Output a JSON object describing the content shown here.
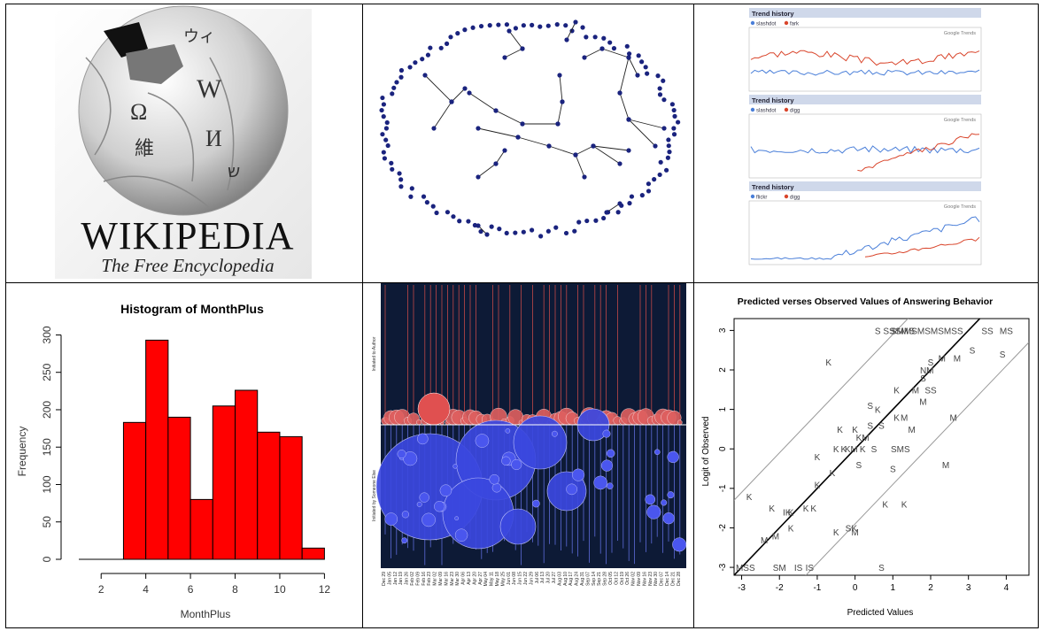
{
  "wikipedia": {
    "title": "WIKIPEDIA",
    "subtitle": "The Free Encyclopedia",
    "glyphs": [
      "Ω",
      "W",
      "И",
      "維",
      "ウィ",
      "ש"
    ]
  },
  "trends": {
    "panels": [
      {
        "header": "Trend history",
        "legend": [
          "slashdot",
          "fark"
        ],
        "label": "Google Trends"
      },
      {
        "header": "Trend history",
        "legend": [
          "slashdot",
          "digg"
        ],
        "label": "Google Trends"
      },
      {
        "header": "Trend history",
        "legend": [
          "flickr",
          "digg"
        ],
        "label": "Google Trends"
      }
    ],
    "colors": {
      "blue": "#4a7fd9",
      "red": "#d9452b"
    }
  },
  "chart_data": [
    {
      "type": "bar",
      "title": "Histogram of MonthPlus",
      "xlabel": "MonthPlus",
      "ylabel": "Frequency",
      "bin_edges": [
        3,
        4,
        5,
        6,
        7,
        8,
        9,
        10,
        11,
        12
      ],
      "values": [
        183,
        293,
        190,
        80,
        205,
        226,
        170,
        164,
        15
      ],
      "xticks": [
        "2",
        "4",
        "6",
        "8",
        "10",
        "12"
      ],
      "yticks": [
        "0",
        "50",
        "100",
        "150",
        "200",
        "250",
        "300"
      ],
      "xlim": [
        1,
        12.5
      ],
      "ylim": [
        0,
        310
      ],
      "color": "#ff0000"
    },
    {
      "type": "scatter",
      "title": "Predicted verses Observed Values of Answering Behavior",
      "xlabel": "Predicted Values",
      "ylabel": "Logit of Observed",
      "xticks": [
        "-3",
        "-2",
        "-1",
        "0",
        "1",
        "2",
        "3",
        "4"
      ],
      "yticks": [
        "-3",
        "-2",
        "-1",
        "0",
        "1",
        "2",
        "3"
      ],
      "xlim": [
        -3.2,
        4.6
      ],
      "ylim": [
        -3.2,
        3.3
      ],
      "points": [
        {
          "x": -2.9,
          "y": -3.0,
          "label": "MSS"
        },
        {
          "x": -2.0,
          "y": -3.0,
          "label": "SM"
        },
        {
          "x": -1.5,
          "y": -3.0,
          "label": "IS"
        },
        {
          "x": -1.2,
          "y": -3.0,
          "label": "IS"
        },
        {
          "x": 0.7,
          "y": -3.0,
          "label": "S"
        },
        {
          "x": -2.8,
          "y": -1.2,
          "label": "K"
        },
        {
          "x": -2.2,
          "y": -1.5,
          "label": "K"
        },
        {
          "x": -1.8,
          "y": -1.6,
          "label": "IK"
        },
        {
          "x": -1.7,
          "y": -1.6,
          "label": "K"
        },
        {
          "x": -1.3,
          "y": -1.5,
          "label": "K"
        },
        {
          "x": -1.1,
          "y": -1.5,
          "label": "K"
        },
        {
          "x": -2.4,
          "y": -2.3,
          "label": "M"
        },
        {
          "x": -2.1,
          "y": -2.2,
          "label": "M"
        },
        {
          "x": -1.7,
          "y": -2.0,
          "label": "K"
        },
        {
          "x": -1.0,
          "y": -0.9,
          "label": "K"
        },
        {
          "x": -0.6,
          "y": -0.6,
          "label": "K"
        },
        {
          "x": -1.0,
          "y": -0.2,
          "label": "K"
        },
        {
          "x": -0.5,
          "y": 0.0,
          "label": "K"
        },
        {
          "x": -0.3,
          "y": 0.0,
          "label": "K"
        },
        {
          "x": -0.1,
          "y": 0.0,
          "label": "KM"
        },
        {
          "x": 0.2,
          "y": 0.0,
          "label": "K"
        },
        {
          "x": 0.5,
          "y": 0.0,
          "label": "S"
        },
        {
          "x": 1.2,
          "y": 0.0,
          "label": "SMS"
        },
        {
          "x": 0.1,
          "y": -0.4,
          "label": "S"
        },
        {
          "x": 1.0,
          "y": -0.5,
          "label": "S"
        },
        {
          "x": -0.4,
          "y": 0.5,
          "label": "K"
        },
        {
          "x": 0.0,
          "y": 0.5,
          "label": "K"
        },
        {
          "x": 0.2,
          "y": 0.3,
          "label": "KM"
        },
        {
          "x": 0.4,
          "y": 0.6,
          "label": "S"
        },
        {
          "x": 0.7,
          "y": 0.6,
          "label": "S"
        },
        {
          "x": 1.1,
          "y": 0.8,
          "label": "K"
        },
        {
          "x": 1.5,
          "y": 0.5,
          "label": "M"
        },
        {
          "x": 0.6,
          "y": 1.0,
          "label": "K"
        },
        {
          "x": 1.3,
          "y": 0.8,
          "label": "M"
        },
        {
          "x": 1.8,
          "y": 1.2,
          "label": "M"
        },
        {
          "x": 2.6,
          "y": 0.8,
          "label": "M"
        },
        {
          "x": 1.1,
          "y": 1.5,
          "label": "K"
        },
        {
          "x": 1.6,
          "y": 1.5,
          "label": "M"
        },
        {
          "x": 2.0,
          "y": 1.5,
          "label": "SS"
        },
        {
          "x": 1.8,
          "y": 1.8,
          "label": "S"
        },
        {
          "x": 1.9,
          "y": 2.0,
          "label": "NM"
        },
        {
          "x": 2.0,
          "y": 2.2,
          "label": "S"
        },
        {
          "x": 2.3,
          "y": 2.3,
          "label": "M"
        },
        {
          "x": 2.7,
          "y": 2.3,
          "label": "M"
        },
        {
          "x": 3.1,
          "y": 2.5,
          "label": "S"
        },
        {
          "x": 3.9,
          "y": 2.4,
          "label": "S"
        },
        {
          "x": -0.5,
          "y": -2.1,
          "label": "K"
        },
        {
          "x": -0.1,
          "y": -2.0,
          "label": "SK"
        },
        {
          "x": 0.0,
          "y": -2.1,
          "label": "M"
        },
        {
          "x": 0.4,
          "y": 1.1,
          "label": "S"
        },
        {
          "x": 0.8,
          "y": -1.4,
          "label": "K"
        },
        {
          "x": 1.3,
          "y": -1.4,
          "label": "K"
        },
        {
          "x": 2.4,
          "y": -0.4,
          "label": "M"
        },
        {
          "x": -0.7,
          "y": 2.2,
          "label": "K"
        },
        {
          "x": 0.6,
          "y": 3.0,
          "label": "S"
        },
        {
          "x": 0.9,
          "y": 3.0,
          "label": "SS"
        },
        {
          "x": 1.2,
          "y": 3.0,
          "label": "ISM"
        },
        {
          "x": 1.5,
          "y": 3.0,
          "label": "S"
        },
        {
          "x": 1.9,
          "y": 3.0,
          "label": "SMMSMSMSMSS"
        },
        {
          "x": 3.5,
          "y": 3.0,
          "label": "SS"
        },
        {
          "x": 4.0,
          "y": 3.0,
          "label": "MS"
        }
      ],
      "lines": [
        {
          "name": "fit",
          "intercept": 0.0,
          "slope": 1.0
        },
        {
          "name": "upper",
          "intercept": 1.9,
          "slope": 1.0
        },
        {
          "name": "lower",
          "intercept": -1.9,
          "slope": 1.0
        }
      ]
    }
  ],
  "bubbles": {
    "top_label": "Initiated to Author",
    "bottom_label": "Initiated by Someone Else",
    "dates": [
      "Dec 29",
      "Jan 05",
      "Jan 12",
      "Jan 19",
      "Jan 26",
      "Feb 02",
      "Feb 09",
      "Feb 16",
      "Feb 23",
      "Mar 02",
      "Mar 09",
      "Mar 16",
      "Mar 23",
      "Mar 30",
      "Apr 06",
      "Apr 13",
      "Apr 20",
      "Apr 27",
      "May 04",
      "May 11",
      "May 18",
      "May 25",
      "Jun 01",
      "Jun 08",
      "Jun 15",
      "Jun 22",
      "Jun 29",
      "Jul 06",
      "Jul 13",
      "Jul 20",
      "Jul 27",
      "Aug 03",
      "Aug 10",
      "Aug 17",
      "Aug 24",
      "Aug 31",
      "Sep 07",
      "Sep 14",
      "Sep 21",
      "Sep 28",
      "Oct 05",
      "Oct 12",
      "Oct 19",
      "Oct 26",
      "Nov 02",
      "Nov 09",
      "Nov 16",
      "Nov 23",
      "Nov 30",
      "Dec 07",
      "Dec 14",
      "Dec 21",
      "Dec 28"
    ]
  }
}
